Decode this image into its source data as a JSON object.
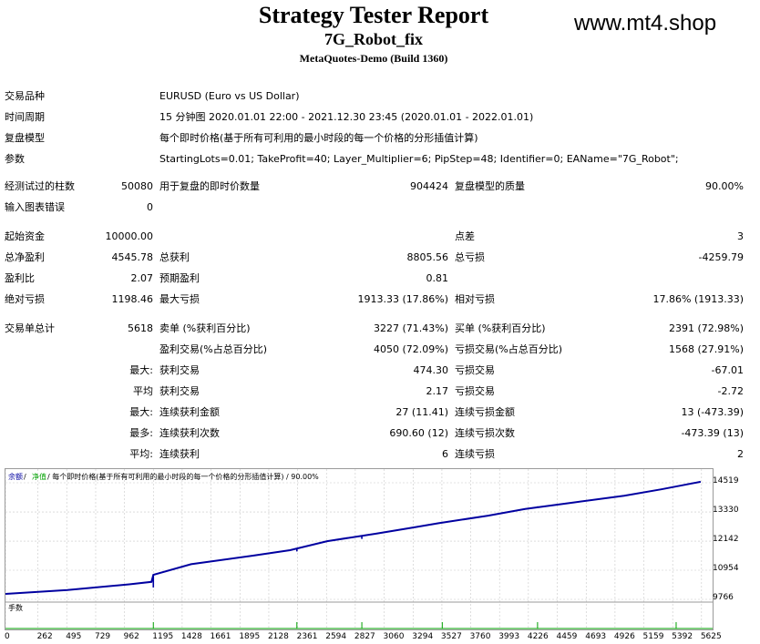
{
  "header": {
    "title": "Strategy Tester Report",
    "subtitle": "7G_Robot_fix",
    "build": "MetaQuotes-Demo (Build 1360)",
    "watermark": "www.mt4.shop"
  },
  "info": {
    "symbol_label": "交易品种",
    "symbol_value": "EURUSD (Euro vs US Dollar)",
    "period_label": "时间周期",
    "period_value": "15 分钟图 2020.01.01 22:00 - 2021.12.30 23:45 (2020.01.01 - 2022.01.01)",
    "model_label": "复盘模型",
    "model_value": "每个即时价格(基于所有可利用的最小时段的每一个价格的分形插值计算)",
    "params_label": "参数",
    "params_value": "StartingLots=0.01; TakeProfit=40; Layer_Multiplier=6; PipStep=48; Identifier=0; EAName=\"7G_Robot\";"
  },
  "bars": {
    "bars_label": "经测试过的柱数",
    "bars_value": "50080",
    "ticks_label": "用于复盘的即时价数量",
    "ticks_value": "904424",
    "quality_label": "复盘模型的质量",
    "quality_value": "90.00%",
    "errors_label": "输入图表错误",
    "errors_value": "0"
  },
  "stats": {
    "deposit_label": "起始资金",
    "deposit_value": "10000.00",
    "spread_label": "点差",
    "spread_value": "3",
    "net_label": "总净盈利",
    "net_value": "4545.78",
    "gross_profit_label": "总获利",
    "gross_profit_value": "8805.56",
    "gross_loss_label": "总亏损",
    "gross_loss_value": "-4259.79",
    "pf_label": "盈利比",
    "pf_value": "2.07",
    "exp_label": "预期盈利",
    "exp_value": "0.81",
    "abs_dd_label": "绝对亏损",
    "abs_dd_value": "1198.46",
    "max_dd_label": "最大亏损",
    "max_dd_value": "1913.33 (17.86%)",
    "rel_dd_label": "相对亏损",
    "rel_dd_value": "17.86% (1913.33)",
    "total_trades_label": "交易单总计",
    "total_trades_value": "5618",
    "short_label": "卖单 (%获利百分比)",
    "short_value": "3227 (71.43%)",
    "long_label": "买单 (%获利百分比)",
    "long_value": "2391 (72.98%)",
    "profit_trades_label": "盈利交易(%占总百分比)",
    "profit_trades_value": "4050 (72.09%)",
    "loss_trades_label": "亏损交易(%占总百分比)",
    "loss_trades_value": "1568 (27.91%)",
    "largest_label": "最大:",
    "largest_profit_label": "获利交易",
    "largest_profit_value": "474.30",
    "largest_loss_label": "亏损交易",
    "largest_loss_value": "-67.01",
    "average_label": "平均",
    "average_profit_label": "获利交易",
    "average_profit_value": "2.17",
    "average_loss_label": "亏损交易",
    "average_loss_value": "-2.72",
    "max_label": "最大:",
    "max_cons_wins_label": "连续获利金额",
    "max_cons_wins_value": "27 (11.41)",
    "max_cons_losses_label": "连续亏损金额",
    "max_cons_losses_value": "13 (-473.39)",
    "most_label": "最多:",
    "most_cons_profit_label": "连续获利次数",
    "most_cons_profit_value": "690.60 (12)",
    "most_cons_loss_label": "连续亏损次数",
    "most_cons_loss_value": "-473.39 (13)",
    "avg_label": "平均:",
    "avg_cons_wins_label": "连续获利",
    "avg_cons_wins_value": "6",
    "avg_cons_losses_label": "连续亏损",
    "avg_cons_losses_value": "2"
  },
  "chart_data": {
    "type": "line",
    "legend_balance": "余额",
    "legend_equity": "净值",
    "legend_rest": "/ 每个即时价格(基于所有可利用的最小时段的每一个价格的分形插值计算) / 90.00%",
    "lots_label": "手数",
    "colors": {
      "balance": "#0000a0",
      "equity": "#00a000",
      "lots": "#00a000"
    },
    "ylim": [
      9766,
      15000
    ],
    "y_ticks": [
      14519,
      13330,
      12142,
      10954,
      9766
    ],
    "x_ticks": [
      0,
      262,
      495,
      729,
      962,
      1195,
      1428,
      1661,
      1895,
      2128,
      2361,
      2594,
      2827,
      3060,
      3294,
      3527,
      3760,
      3993,
      4226,
      4459,
      4693,
      4926,
      5159,
      5392,
      5625
    ],
    "xlim": [
      0,
      5700
    ],
    "series": [
      {
        "name": "余额",
        "x": [
          0,
          500,
          1000,
          1180,
          1195,
          1500,
          2000,
          2300,
          2600,
          3000,
          3300,
          3500,
          3900,
          4200,
          4600,
          5000,
          5300,
          5618
        ],
        "values": [
          9990,
          10150,
          10380,
          10480,
          10770,
          11200,
          11550,
          11770,
          12140,
          12450,
          12700,
          12870,
          13180,
          13450,
          13720,
          13990,
          14250,
          14560
        ]
      }
    ],
    "dips": [
      {
        "x": 1195,
        "low": 10250
      },
      {
        "x": 2355,
        "low": 11720
      },
      {
        "x": 2880,
        "low": 12230
      },
      {
        "x": 3530,
        "low": 12890
      },
      {
        "x": 4300,
        "low": 13560
      }
    ],
    "lot_spikes": [
      1195,
      2355,
      2880,
      3530,
      4300,
      5420
    ]
  }
}
